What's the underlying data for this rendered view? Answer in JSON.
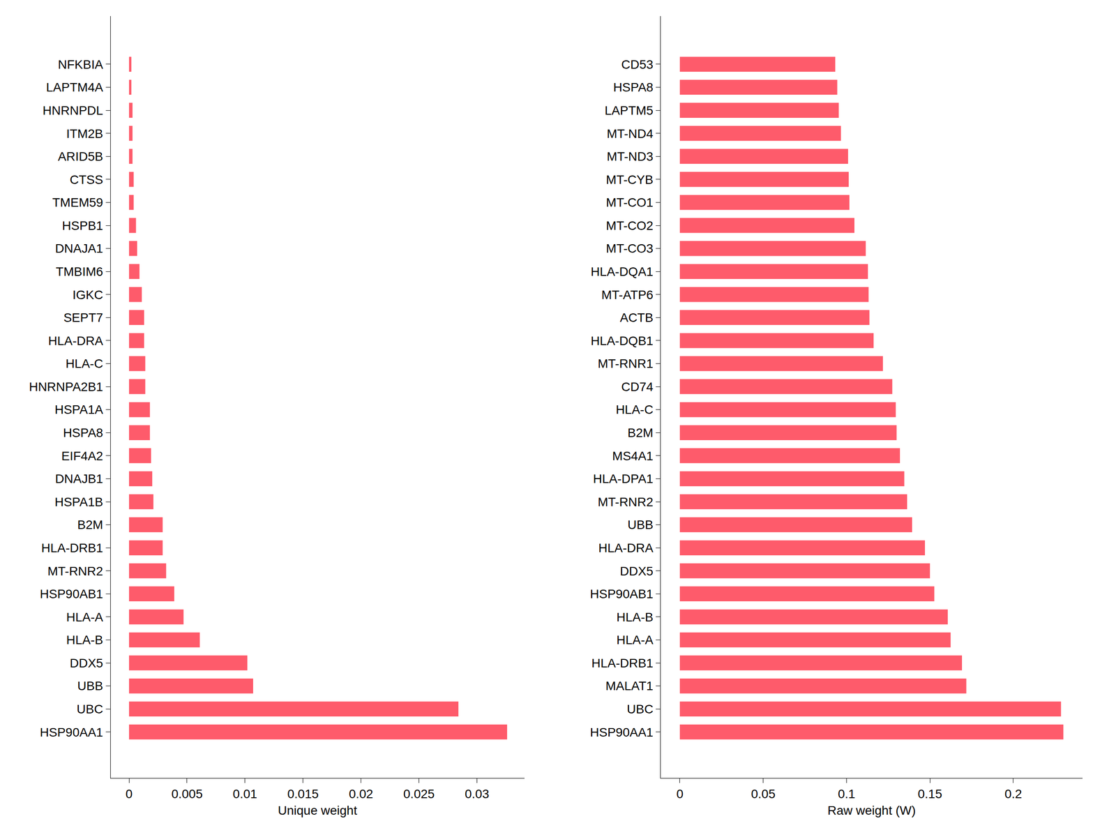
{
  "chart_data": [
    {
      "type": "bar",
      "orientation": "horizontal",
      "xlabel": "Unique weight",
      "color": "#fe5b6b",
      "grid": false,
      "categories": [
        "HSP90AA1",
        "UBC",
        "UBB",
        "DDX5",
        "HLA-B",
        "HLA-A",
        "HSP90AB1",
        "MT-RNR2",
        "HLA-DRB1",
        "B2M",
        "HSPA1B",
        "DNAJB1",
        "EIF4A2",
        "HSPA8",
        "HSPA1A",
        "HNRNPA2B1",
        "HLA-C",
        "HLA-DRA",
        "SEPT7",
        "IGKC",
        "TMBIM6",
        "DNAJA1",
        "HSPB1",
        "TMEM59",
        "CTSS",
        "ARID5B",
        "ITM2B",
        "HNRNPDL",
        "LAPTM4A",
        "NFKBIA"
      ],
      "values": [
        0.0326,
        0.0284,
        0.0107,
        0.0102,
        0.0061,
        0.0047,
        0.0039,
        0.0032,
        0.0029,
        0.0029,
        0.0021,
        0.002,
        0.0019,
        0.0018,
        0.0018,
        0.0014,
        0.0014,
        0.0013,
        0.0013,
        0.0011,
        0.0009,
        0.0007,
        0.0006,
        0.0004,
        0.0004,
        0.0003,
        0.0003,
        0.0003,
        0.0002,
        0.0002
      ],
      "xlim": [
        -0.0016,
        0.0341
      ],
      "xticks": [
        0,
        0.005,
        0.01,
        0.015,
        0.02,
        0.025,
        0.03
      ]
    },
    {
      "type": "bar",
      "orientation": "horizontal",
      "xlabel": "Raw weight (W)",
      "color": "#fe5b6b",
      "grid": false,
      "categories": [
        "HSP90AA1",
        "UBC",
        "MALAT1",
        "HLA-DRB1",
        "HLA-A",
        "HLA-B",
        "HSP90AB1",
        "DDX5",
        "HLA-DRA",
        "UBB",
        "MT-RNR2",
        "HLA-DPA1",
        "MS4A1",
        "B2M",
        "HLA-C",
        "CD74",
        "MT-RNR1",
        "HLA-DQB1",
        "ACTB",
        "MT-ATP6",
        "HLA-DQA1",
        "MT-CO3",
        "MT-CO2",
        "MT-CO1",
        "MT-CYB",
        "MT-ND3",
        "MT-ND4",
        "LAPTM5",
        "HSPA8",
        "CD53"
      ],
      "values": [
        0.23,
        0.2286,
        0.1718,
        0.1692,
        0.1624,
        0.1607,
        0.1526,
        0.15,
        0.147,
        0.1393,
        0.1363,
        0.1346,
        0.132,
        0.13,
        0.1295,
        0.1274,
        0.1218,
        0.1162,
        0.1137,
        0.1132,
        0.1128,
        0.1115,
        0.1047,
        0.1017,
        0.1013,
        0.1009,
        0.0966,
        0.0953,
        0.0944,
        0.0932
      ],
      "xlim": [
        -0.0115,
        0.2415
      ],
      "xticks": [
        0,
        0.05,
        0.1,
        0.15,
        0.2
      ]
    }
  ]
}
